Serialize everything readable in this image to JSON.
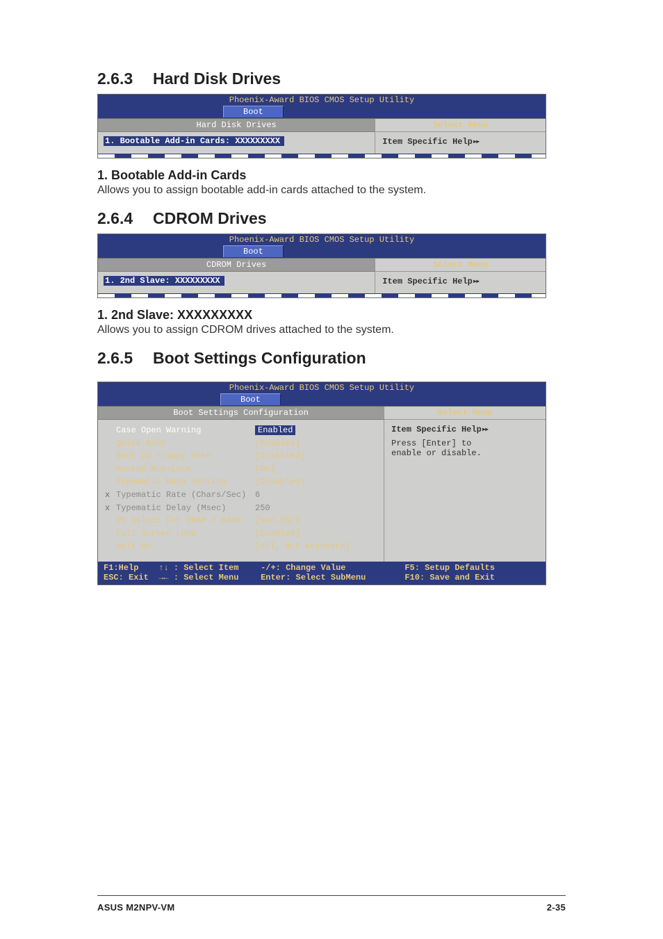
{
  "sections": {
    "s1": {
      "num": "2.6.3",
      "title": "Hard Disk Drives"
    },
    "s1_sub": {
      "title": "1. Bootable Add-in Cards",
      "desc": "Allows you to assign bootable add-in cards attached to the system."
    },
    "s2": {
      "num": "2.6.4",
      "title": "CDROM Drives"
    },
    "s2_sub": {
      "title": "1. 2nd Slave: XXXXXXXXX",
      "desc": "Allows you to assign CDROM drives attached to the system."
    },
    "s3": {
      "num": "2.6.5",
      "title": "Boot Settings Configuration"
    }
  },
  "bios1": {
    "utility_title": "Phoenix-Award BIOS CMOS Setup Utility",
    "tab": "Boot",
    "left_header": "Hard Disk Drives",
    "right_header": "Select Menu",
    "item": "1. Bootable Add-in Cards: XXXXXXXXX",
    "right_content": "Item Specific Help",
    "arrow": "▸▸"
  },
  "bios2": {
    "utility_title": "Phoenix-Award BIOS CMOS Setup Utility",
    "tab": "Boot",
    "left_header": "CDROM Drives",
    "right_header": "Select Menu",
    "item": "1. 2nd Slave: XXXXXXXXX",
    "right_content": "Item Specific Help",
    "arrow": "▸▸"
  },
  "bios3": {
    "utility_title": "Phoenix-Award BIOS CMOS Setup Utility",
    "tab": "Boot",
    "left_header": "Boot Settings Configuration",
    "right_header": "Select Menu",
    "right_help_title": "Item Specific Help",
    "right_help_arrow": "▸▸",
    "right_help_1": "Press [Enter] to",
    "right_help_2": "enable or disable.",
    "rows": [
      {
        "marker": "",
        "label": "Case Open Warning",
        "val": "Enabled",
        "selected": true,
        "dim": false
      },
      {
        "marker": "",
        "label": "Quick Boot",
        "val": "[Enabled]",
        "selected": false,
        "dim": false
      },
      {
        "marker": "",
        "label": "Boot Up Floppy Seek",
        "val": "[Disabled]",
        "selected": false,
        "dim": false
      },
      {
        "marker": "",
        "label": "Bootup Num-Lock",
        "val": "[On]",
        "selected": false,
        "dim": false
      },
      {
        "marker": "",
        "label": "Typematic Rate Setting",
        "val": "[Disabled]",
        "selected": false,
        "dim": false
      },
      {
        "marker": "x",
        "label": "Typematic Rate (Chars/Sec)",
        "val": " 6",
        "selected": false,
        "dim": true
      },
      {
        "marker": "x",
        "label": "Typematic Delay (Msec)",
        "val": " 250",
        "selected": false,
        "dim": true
      },
      {
        "marker": "",
        "label": "OS Select For DRAM > 64MB",
        "val": "[Non-OS2]",
        "selected": false,
        "dim": false
      },
      {
        "marker": "",
        "label": "Full Screen LOGO",
        "val": "[Enabled]",
        "selected": false,
        "dim": false
      },
      {
        "marker": "",
        "label": "Halt On",
        "val": "[All, But keyboard]",
        "selected": false,
        "dim": false
      }
    ],
    "nav": {
      "c1a": "F1:Help    ↑↓ : Select Item",
      "c2a": "-/+: Change Value",
      "c3a": "F5: Setup Defaults",
      "c1b": "ESC: Exit  →← : Select Menu",
      "c2b": "Enter: Select SubMenu",
      "c3b": "F10: Save and Exit"
    }
  },
  "footer": {
    "left": "ASUS M2NPV-VM",
    "right": "2-35"
  }
}
